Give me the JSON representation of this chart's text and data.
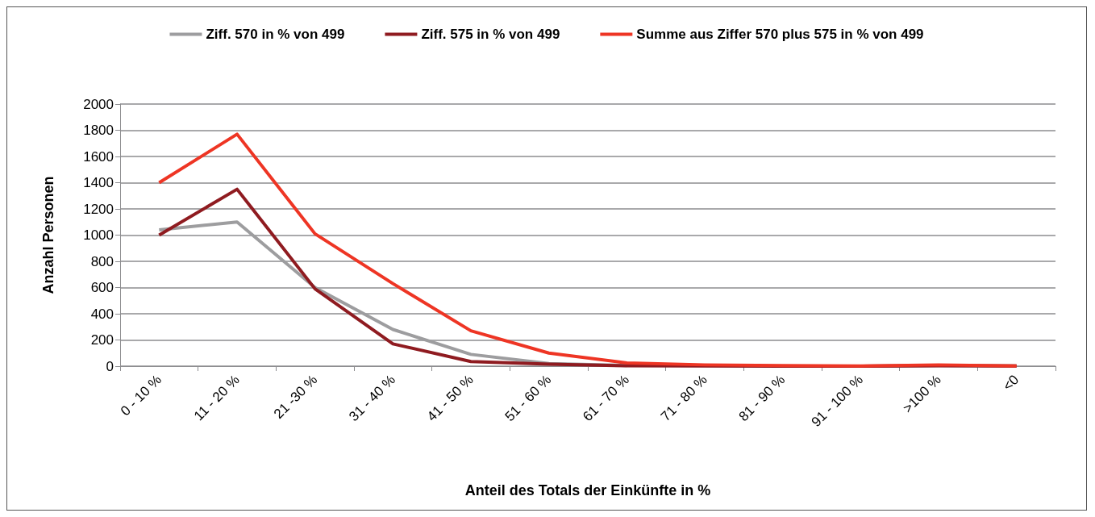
{
  "chart_data": {
    "type": "line",
    "xlabel": "Anteil des Totals der Einkünfte in %",
    "ylabel": "Anzahl Personen",
    "categories": [
      "0 - 10 %",
      "11 - 20 %",
      "21 -30 %",
      "31 - 40 %",
      "41 - 50 %",
      "51 - 60 %",
      "61 - 70 %",
      "71 - 80 %",
      "81 - 90 %",
      "91 - 100 %",
      ">100 %",
      "<0"
    ],
    "series": [
      {
        "name": "Ziff. 570 in % von 499",
        "color": "#9d9d9f",
        "values": [
          1040,
          1100,
          600,
          280,
          90,
          20,
          5,
          null,
          null,
          0,
          5,
          1
        ]
      },
      {
        "name": "Ziff. 575 in % von 499",
        "color": "#8f1b20",
        "values": [
          1000,
          1350,
          590,
          170,
          35,
          15,
          3,
          1,
          0,
          0,
          3,
          1
        ]
      },
      {
        "name": "Summe aus Ziffer 570 plus 575 in % von 499",
        "color": "#ee3524",
        "values": [
          1400,
          1770,
          1010,
          630,
          270,
          100,
          25,
          10,
          5,
          2,
          10,
          2
        ]
      }
    ],
    "ylim": [
      0,
      2000
    ],
    "yticks": [
      0,
      200,
      400,
      600,
      800,
      1000,
      1200,
      1400,
      1600,
      1800,
      2000
    ],
    "grid": "y",
    "legend": "top",
    "marker": "none",
    "line_style": "solid"
  }
}
